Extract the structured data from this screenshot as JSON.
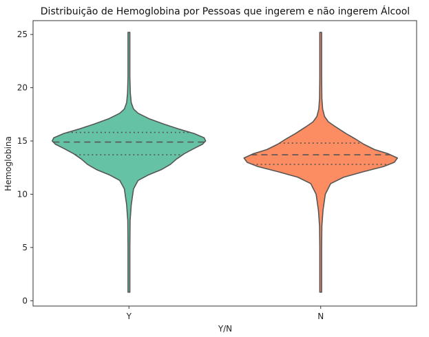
{
  "chart_data": {
    "type": "violin",
    "title": "Distribuição de Hemoglobina por Pessoas que ingerem e não ingerem Álcool",
    "xlabel": "Y/N",
    "ylabel": "Hemoglobina",
    "categories": [
      "Y",
      "N"
    ],
    "ylim": [
      -0.5,
      26.3
    ],
    "yticks": [
      "0",
      "5",
      "10",
      "15",
      "20",
      "25"
    ],
    "grid": false,
    "inner": "quartile",
    "colors": [
      "#66c2a5",
      "#fc8d62"
    ],
    "series": [
      {
        "category": "Y",
        "min": 0.8,
        "max": 25.2,
        "q1": 13.7,
        "median": 14.9,
        "q3": 15.8,
        "density": [
          [
            0.8,
            0.012
          ],
          [
            5.0,
            0.012
          ],
          [
            7.5,
            0.015
          ],
          [
            9.0,
            0.03
          ],
          [
            10.5,
            0.06
          ],
          [
            11.3,
            0.12
          ],
          [
            11.8,
            0.25
          ],
          [
            12.3,
            0.42
          ],
          [
            12.8,
            0.54
          ],
          [
            13.3,
            0.62
          ],
          [
            13.8,
            0.72
          ],
          [
            14.3,
            0.85
          ],
          [
            14.7,
            0.96
          ],
          [
            15.0,
            1.0
          ],
          [
            15.3,
            0.98
          ],
          [
            15.7,
            0.85
          ],
          [
            16.1,
            0.66
          ],
          [
            16.6,
            0.45
          ],
          [
            17.1,
            0.26
          ],
          [
            17.6,
            0.12
          ],
          [
            18.0,
            0.06
          ],
          [
            18.6,
            0.03
          ],
          [
            19.5,
            0.018
          ],
          [
            21.0,
            0.012
          ],
          [
            25.2,
            0.012
          ]
        ]
      },
      {
        "category": "N",
        "min": 0.8,
        "max": 25.2,
        "q1": 12.8,
        "median": 13.7,
        "q3": 14.8,
        "density": [
          [
            0.8,
            0.012
          ],
          [
            5.0,
            0.012
          ],
          [
            7.0,
            0.015
          ],
          [
            8.5,
            0.03
          ],
          [
            10.0,
            0.06
          ],
          [
            11.0,
            0.13
          ],
          [
            11.6,
            0.3
          ],
          [
            12.1,
            0.55
          ],
          [
            12.6,
            0.82
          ],
          [
            13.0,
            0.96
          ],
          [
            13.4,
            1.0
          ],
          [
            13.8,
            0.88
          ],
          [
            14.2,
            0.7
          ],
          [
            14.7,
            0.56
          ],
          [
            15.2,
            0.45
          ],
          [
            15.7,
            0.33
          ],
          [
            16.3,
            0.2
          ],
          [
            16.8,
            0.1
          ],
          [
            17.3,
            0.05
          ],
          [
            18.0,
            0.025
          ],
          [
            19.0,
            0.015
          ],
          [
            21.0,
            0.012
          ],
          [
            25.2,
            0.012
          ]
        ]
      }
    ]
  }
}
